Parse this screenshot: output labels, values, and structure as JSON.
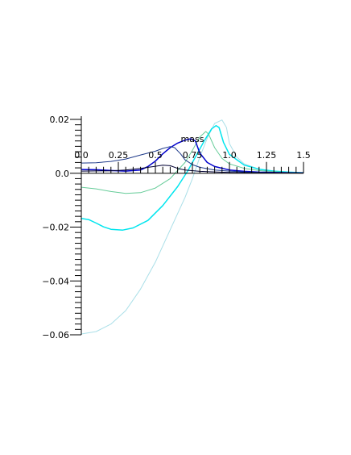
{
  "chart_data": {
    "type": "line",
    "title": "",
    "xlabel": "mass",
    "ylabel": "",
    "xlim": [
      0,
      1.5
    ],
    "ylim": [
      -0.06,
      0.02
    ],
    "grid": false,
    "x_ticks": [
      {
        "value": 0.0,
        "label": "0.0"
      },
      {
        "value": 0.25,
        "label": "0.25"
      },
      {
        "value": 0.5,
        "label": "0.5"
      },
      {
        "value": 0.75,
        "label": "0.75"
      },
      {
        "value": 1.0,
        "label": "1.0"
      },
      {
        "value": 1.25,
        "label": "1.25"
      },
      {
        "value": 1.5,
        "label": "1.5"
      }
    ],
    "y_ticks": [
      {
        "value": 0.02,
        "label": "0.02"
      },
      {
        "value": 0.0,
        "label": "0.0"
      },
      {
        "value": -0.02,
        "label": "−0.02"
      },
      {
        "value": -0.04,
        "label": "−0.04"
      },
      {
        "value": -0.06,
        "label": "−0.06"
      }
    ],
    "series": [
      {
        "color": "#aadfe8",
        "width": 1,
        "points": [
          [
            0,
            -0.0597
          ],
          [
            0.1,
            -0.0588
          ],
          [
            0.2,
            -0.056
          ],
          [
            0.3,
            -0.051
          ],
          [
            0.4,
            -0.043
          ],
          [
            0.5,
            -0.033
          ],
          [
            0.6,
            -0.021
          ],
          [
            0.7,
            -0.009
          ],
          [
            0.75,
            -0.002
          ],
          [
            0.8,
            0.006
          ],
          [
            0.85,
            0.013
          ],
          [
            0.9,
            0.0185
          ],
          [
            0.95,
            0.0198
          ],
          [
            0.98,
            0.017
          ],
          [
            1.0,
            0.011
          ],
          [
            1.05,
            0.006
          ],
          [
            1.1,
            0.0035
          ],
          [
            1.2,
            0.0015
          ],
          [
            1.3,
            0.0007
          ],
          [
            1.4,
            0.0003
          ],
          [
            1.5,
            0.0002
          ]
        ]
      },
      {
        "color": "#00e5ee",
        "width": 1.5,
        "points": [
          [
            0,
            -0.0168
          ],
          [
            0.05,
            -0.0172
          ],
          [
            0.1,
            -0.0185
          ],
          [
            0.15,
            -0.0199
          ],
          [
            0.2,
            -0.0208
          ],
          [
            0.28,
            -0.0211
          ],
          [
            0.35,
            -0.0203
          ],
          [
            0.45,
            -0.0175
          ],
          [
            0.55,
            -0.012
          ],
          [
            0.65,
            -0.005
          ],
          [
            0.72,
            0.001
          ],
          [
            0.78,
            0.007
          ],
          [
            0.83,
            0.012
          ],
          [
            0.88,
            0.0165
          ],
          [
            0.91,
            0.0177
          ],
          [
            0.93,
            0.017
          ],
          [
            0.96,
            0.0115
          ],
          [
            1.0,
            0.007
          ],
          [
            1.1,
            0.003
          ],
          [
            1.2,
            0.0015
          ],
          [
            1.3,
            0.0008
          ],
          [
            1.4,
            0.0004
          ],
          [
            1.5,
            0.0002
          ]
        ]
      },
      {
        "color": "#66cc99",
        "width": 1,
        "points": [
          [
            0,
            -0.0052
          ],
          [
            0.1,
            -0.0058
          ],
          [
            0.2,
            -0.0068
          ],
          [
            0.3,
            -0.0075
          ],
          [
            0.4,
            -0.0072
          ],
          [
            0.5,
            -0.0055
          ],
          [
            0.6,
            -0.002
          ],
          [
            0.7,
            0.004
          ],
          [
            0.75,
            0.0085
          ],
          [
            0.8,
            0.0135
          ],
          [
            0.84,
            0.0155
          ],
          [
            0.86,
            0.0145
          ],
          [
            0.9,
            0.0095
          ],
          [
            0.95,
            0.0055
          ],
          [
            1.0,
            0.0035
          ],
          [
            1.1,
            0.0018
          ],
          [
            1.2,
            0.001
          ],
          [
            1.3,
            0.0006
          ],
          [
            1.4,
            0.0003
          ],
          [
            1.5,
            0.0002
          ]
        ]
      },
      {
        "color": "#0000cc",
        "width": 1.5,
        "points": [
          [
            0,
            0.0014
          ],
          [
            0.1,
            0.0013
          ],
          [
            0.2,
            0.001
          ],
          [
            0.3,
            0.0008
          ],
          [
            0.4,
            0.0012
          ],
          [
            0.45,
            0.0025
          ],
          [
            0.5,
            0.0045
          ],
          [
            0.55,
            0.0072
          ],
          [
            0.6,
            0.0095
          ],
          [
            0.65,
            0.0112
          ],
          [
            0.7,
            0.0123
          ],
          [
            0.74,
            0.0128
          ],
          [
            0.77,
            0.012
          ],
          [
            0.8,
            0.0075
          ],
          [
            0.85,
            0.004
          ],
          [
            0.9,
            0.0025
          ],
          [
            1.0,
            0.0012
          ],
          [
            1.1,
            0.0007
          ],
          [
            1.2,
            0.0004
          ],
          [
            1.3,
            0.0003
          ],
          [
            1.4,
            0.0002
          ],
          [
            1.5,
            0.0001
          ]
        ]
      },
      {
        "color": "#1e3a8a",
        "width": 1,
        "points": [
          [
            0,
            0.0038
          ],
          [
            0.1,
            0.0039
          ],
          [
            0.2,
            0.0044
          ],
          [
            0.3,
            0.0053
          ],
          [
            0.4,
            0.0068
          ],
          [
            0.5,
            0.0082
          ],
          [
            0.55,
            0.0092
          ],
          [
            0.6,
            0.0099
          ],
          [
            0.63,
            0.0095
          ],
          [
            0.67,
            0.0072
          ],
          [
            0.7,
            0.005
          ],
          [
            0.75,
            0.0032
          ],
          [
            0.8,
            0.0022
          ],
          [
            0.9,
            0.0012
          ],
          [
            1.0,
            0.0008
          ],
          [
            1.1,
            0.0005
          ],
          [
            1.2,
            0.0003
          ],
          [
            1.3,
            0.0002
          ],
          [
            1.4,
            0.0001
          ],
          [
            1.5,
            0.0001
          ]
        ]
      },
      {
        "color": "#000033",
        "width": 1,
        "points": [
          [
            0,
            0.0008
          ],
          [
            0.2,
            0.0009
          ],
          [
            0.3,
            0.0012
          ],
          [
            0.4,
            0.0018
          ],
          [
            0.5,
            0.0026
          ],
          [
            0.55,
            0.003
          ],
          [
            0.6,
            0.0028
          ],
          [
            0.65,
            0.0018
          ],
          [
            0.7,
            0.0012
          ],
          [
            0.8,
            0.0007
          ],
          [
            0.9,
            0.0005
          ],
          [
            1.0,
            0.0003
          ],
          [
            1.2,
            0.0002
          ],
          [
            1.5,
            0.0001
          ]
        ]
      }
    ]
  }
}
